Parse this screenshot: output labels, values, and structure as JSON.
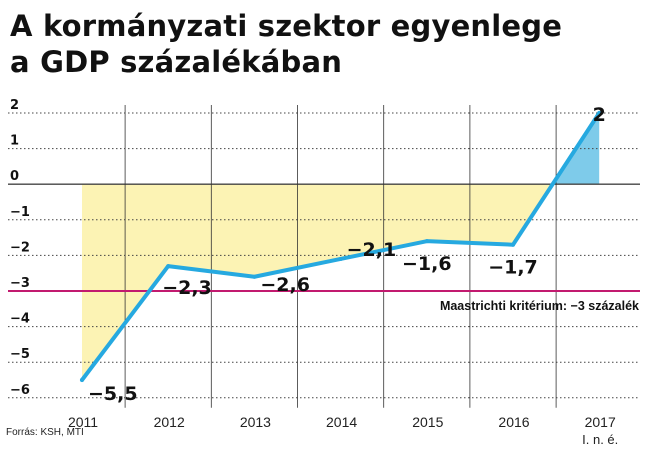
{
  "title": {
    "line1": "A kormányzati szektor egyenlege",
    "line2": "a GDP százalékában"
  },
  "source": "Forrás: KSH, MTI",
  "colors": {
    "line": "#26a9e0",
    "negative_fill": "#fcf3b4",
    "positive_fill": "#7ecbea",
    "threshold": "#c21a6f",
    "grid": "#444444"
  },
  "chart_data": {
    "type": "line",
    "x": [
      "2011",
      "2012",
      "2013",
      "2014",
      "2015",
      "2016",
      "2017"
    ],
    "x_note": {
      "category": "2017",
      "text": "I. n. é."
    },
    "values": [
      -5.5,
      -2.3,
      -2.6,
      -2.1,
      -1.6,
      -1.7,
      2
    ],
    "data_labels": [
      "−5,5",
      "−2,3",
      "−2,6",
      "−2,1",
      "−1,6",
      "−1,7",
      "2"
    ],
    "y_ticks": [
      2,
      1,
      0,
      -1,
      -2,
      -3,
      -4,
      -5,
      -6
    ],
    "y_tick_labels": [
      "2",
      "1",
      "0",
      "−1",
      "−2",
      "−3",
      "−4",
      "−5",
      "−6"
    ],
    "ylim": [
      -6,
      2
    ],
    "threshold": {
      "value": -3,
      "label": "Maastrichti kritérium: −3 százalék"
    },
    "grid": true
  }
}
